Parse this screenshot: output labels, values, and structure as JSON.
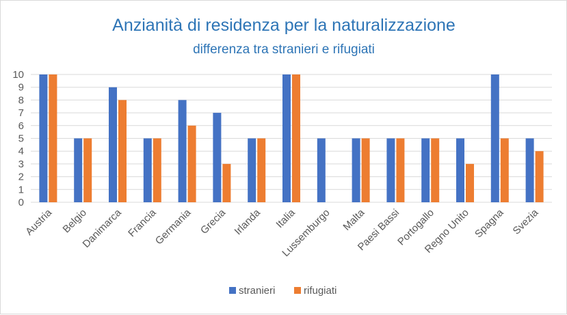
{
  "chart_data": {
    "type": "bar",
    "title": "Anzianità di residenza per la naturalizzazione",
    "subtitle": "differenza tra stranieri e rifugiati",
    "categories": [
      "Austria",
      "Belgio",
      "Danimarca",
      "Francia",
      "Germania",
      "Grecia",
      "Irlanda",
      "Italia",
      "Lussemburgo",
      "Malta",
      "Paesi Bassi",
      "Portogallo",
      "Regno Unito",
      "Spagna",
      "Svezia"
    ],
    "series": [
      {
        "name": "stranieri",
        "color": "#4472c4",
        "values": [
          10,
          5,
          9,
          5,
          8,
          7,
          5,
          10,
          5,
          5,
          5,
          5,
          5,
          10,
          5
        ]
      },
      {
        "name": "rifugiati",
        "color": "#ed7d31",
        "values": [
          10,
          5,
          8,
          5,
          6,
          3,
          5,
          10,
          0,
          5,
          5,
          5,
          3,
          5,
          4
        ]
      }
    ],
    "yticks": [
      "0",
      "1",
      "2",
      "3",
      "4",
      "5",
      "6",
      "7",
      "8",
      "9",
      "10"
    ],
    "ylim": [
      0,
      10
    ],
    "grid": true,
    "legend": "bottom",
    "grid_color": "#d9d9d9"
  }
}
